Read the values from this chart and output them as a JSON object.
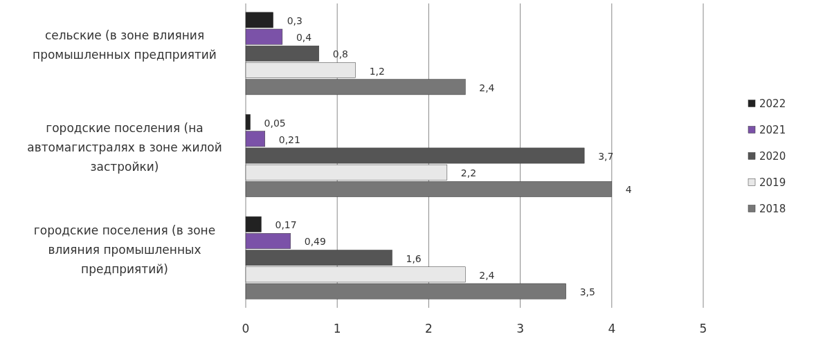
{
  "chart_data": {
    "type": "bar",
    "orientation": "horizontal",
    "categories": [
      "сельские (в зоне влияния промышленных предприятий",
      "городские поселения (на автомагистралях в зоне жилой застройки)",
      "городские поселения (в зоне влияния промышленных предприятий)"
    ],
    "series": [
      {
        "name": "2022",
        "color": "#222222",
        "values": [
          0.3,
          0.05,
          0.17
        ],
        "value_labels": [
          "0,3",
          "0,05",
          "0,17"
        ]
      },
      {
        "name": "2021",
        "color": "#7b52a8",
        "values": [
          0.4,
          0.21,
          0.49
        ],
        "value_labels": [
          "0,4",
          "0,21",
          "0,49"
        ]
      },
      {
        "name": "2020",
        "color": "#555555",
        "values": [
          0.8,
          3.7,
          1.6
        ],
        "value_labels": [
          "0,8",
          "3,7",
          "1,6"
        ]
      },
      {
        "name": "2019",
        "color": "#e8e8e8",
        "values": [
          1.2,
          2.2,
          2.4
        ],
        "value_labels": [
          "1,2",
          "2,2",
          "2,4"
        ]
      },
      {
        "name": "2018",
        "color": "#777777",
        "values": [
          2.4,
          4,
          3.5
        ],
        "value_labels": [
          "2,4",
          "4",
          "3,5"
        ]
      }
    ],
    "xlim": [
      0,
      5
    ],
    "xticks": [
      0,
      1,
      2,
      3,
      4,
      5
    ],
    "grid": "x",
    "legend": "right"
  }
}
